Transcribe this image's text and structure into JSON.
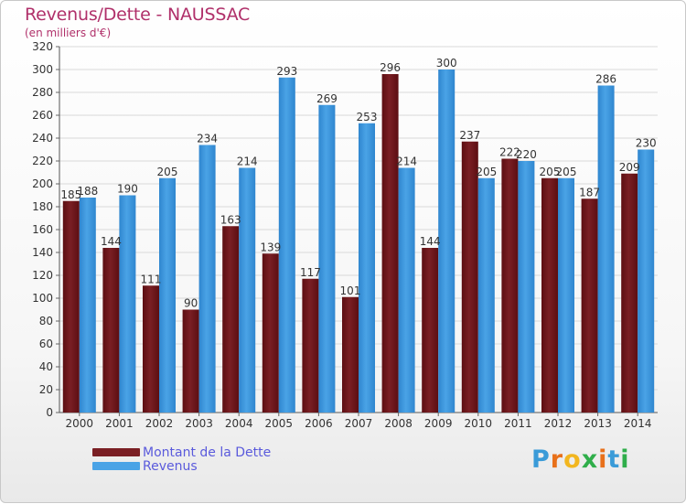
{
  "header": {
    "title": "Revenus/Dette - NAUSSAC",
    "subtitle": "(en milliers d'€)"
  },
  "legend": {
    "debt_label": "Montant de la Dette",
    "revenue_label": "Revenus"
  },
  "brand": {
    "name": "Proxiti"
  },
  "colors": {
    "debt": "#7a1f24",
    "debt_dark": "#5c0e12",
    "revenue": "#4aa3e6",
    "revenue_dark": "#2f86cf",
    "title": "#b0306a",
    "legend_text": "#5a5adc"
  },
  "chart_data": {
    "type": "bar",
    "title": "Revenus/Dette - NAUSSAC",
    "subtitle": "(en milliers d'€)",
    "xlabel": "",
    "ylabel": "",
    "ylim": [
      0,
      320
    ],
    "ytick_step": 20,
    "grid": true,
    "legend_position": "bottom-left",
    "categories": [
      "2000",
      "2001",
      "2002",
      "2003",
      "2004",
      "2005",
      "2006",
      "2007",
      "2008",
      "2009",
      "2010",
      "2011",
      "2012",
      "2013",
      "2014"
    ],
    "series": [
      {
        "name": "Montant de la Dette",
        "values": [
          185,
          144,
          111,
          90,
          163,
          139,
          117,
          101,
          296,
          144,
          237,
          222,
          205,
          187,
          209
        ]
      },
      {
        "name": "Revenus",
        "values": [
          188,
          190,
          205,
          234,
          214,
          293,
          269,
          253,
          214,
          300,
          205,
          220,
          205,
          286,
          230
        ]
      }
    ]
  }
}
